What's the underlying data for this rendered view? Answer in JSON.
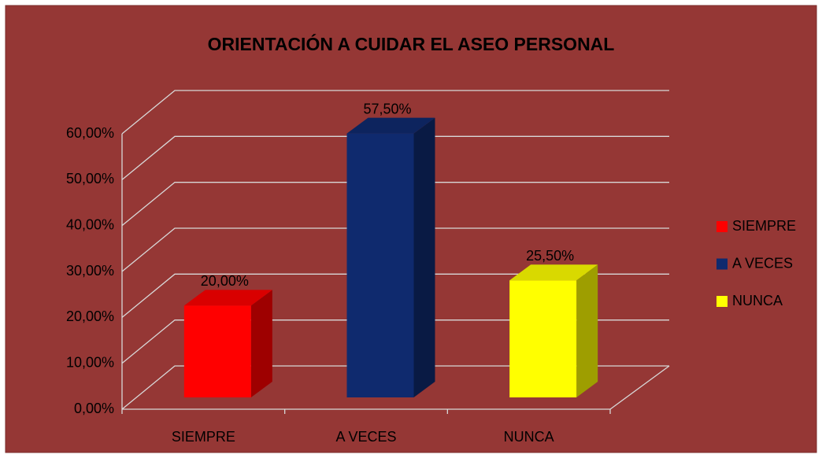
{
  "chart_data": {
    "type": "bar3d",
    "title": "ORIENTACIÓN A CUIDAR EL ASEO PERSONAL",
    "categories": [
      "SIEMPRE",
      "A VECES",
      "NUNCA"
    ],
    "values": [
      20,
      57.5,
      25.5
    ],
    "value_labels": [
      "20,00%",
      "57,50%",
      "25,50%"
    ],
    "colors": [
      "#ff0000",
      "#0f2a6e",
      "#ffff00"
    ],
    "ylim": [
      0,
      60
    ],
    "yticks": [
      {
        "value": 0,
        "label": "0,00%"
      },
      {
        "value": 10,
        "label": "10,00%"
      },
      {
        "value": 20,
        "label": "20,00%"
      },
      {
        "value": 30,
        "label": "30,00%"
      },
      {
        "value": 40,
        "label": "40,00%"
      },
      {
        "value": 50,
        "label": "50,00%"
      },
      {
        "value": 60,
        "label": "60,00%"
      }
    ],
    "grid": true,
    "legend": "right"
  }
}
